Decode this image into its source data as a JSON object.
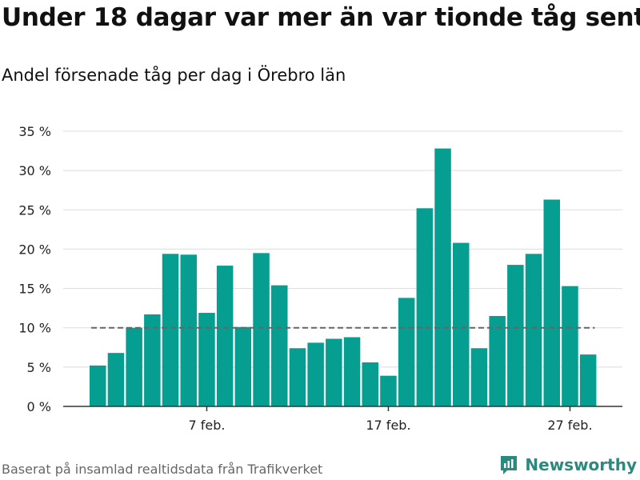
{
  "title": "Under 18 dagar var mer än var tionde tåg sent",
  "subtitle": "Andel försenade tåg per dag i Örebro län",
  "footer": "Baserat på insamlad realtidsdata från Trafikverket",
  "brand": {
    "name": "Newsworthy",
    "icon": "newsworthy-logo-icon"
  },
  "colors": {
    "bar": "#069e91",
    "grid": "#dddddd",
    "axis": "#333333",
    "reference_line": "#666666",
    "brand": "#2b8a7e"
  },
  "chart_data": {
    "type": "bar",
    "x": [
      "1 feb.",
      "2 feb.",
      "3 feb.",
      "4 feb.",
      "5 feb.",
      "6 feb.",
      "7 feb.",
      "8 feb.",
      "9 feb.",
      "10 feb.",
      "11 feb.",
      "12 feb.",
      "13 feb.",
      "14 feb.",
      "15 feb.",
      "16 feb.",
      "17 feb.",
      "18 feb.",
      "19 feb.",
      "20 feb.",
      "21 feb.",
      "22 feb.",
      "23 feb.",
      "24 feb.",
      "25 feb.",
      "26 feb.",
      "27 feb.",
      "28 feb."
    ],
    "values": [
      5.2,
      6.8,
      10.0,
      11.7,
      19.4,
      19.3,
      11.9,
      17.9,
      10.1,
      19.5,
      15.4,
      7.4,
      8.1,
      8.6,
      8.8,
      5.6,
      3.9,
      13.8,
      25.2,
      32.8,
      20.8,
      7.4,
      11.5,
      18.0,
      19.4,
      26.3,
      15.3,
      6.6
    ],
    "reference_line": 10,
    "ylim": [
      0,
      35
    ],
    "yticks": [
      0,
      5,
      10,
      15,
      20,
      25,
      30,
      35
    ],
    "ytick_labels": [
      "0 %",
      "5 %",
      "10 %",
      "15 %",
      "20 %",
      "25 %",
      "30 %",
      "35 %"
    ],
    "xticks": [
      "7 feb.",
      "17 feb.",
      "27 feb."
    ],
    "grid": true,
    "legend": "none"
  }
}
